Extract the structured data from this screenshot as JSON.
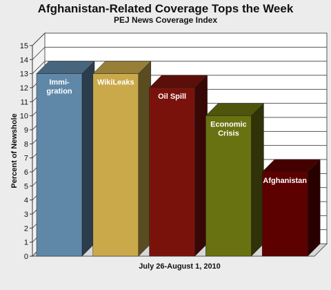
{
  "chart_data": {
    "type": "bar",
    "title": "Afghanistan-Related Coverage Tops the Week",
    "subtitle": "PEJ News Coverage Index",
    "xlabel": "July 26-August 1, 2010",
    "ylabel": "Percent of Newshole",
    "ylim": [
      0,
      15
    ],
    "yticks": [
      0,
      1,
      2,
      3,
      4,
      5,
      6,
      7,
      8,
      9,
      10,
      11,
      12,
      13,
      14,
      15
    ],
    "grid": true,
    "categories": [
      "Immi- gration",
      "WikiLeaks",
      "Oil Spill",
      "Economic Crisis",
      "Afghanistan"
    ],
    "bar_label_lines": [
      [
        "Immi-",
        "gration"
      ],
      [
        "WikiLeaks"
      ],
      [
        "Oil Spill"
      ],
      [
        "Economic",
        "Crisis"
      ],
      [
        "Afghanistan"
      ]
    ],
    "values": [
      13,
      13,
      12,
      10,
      6
    ],
    "colors": [
      "#5f88a8",
      "#c9a94a",
      "#7a120c",
      "#697210",
      "#5c0000"
    ]
  }
}
